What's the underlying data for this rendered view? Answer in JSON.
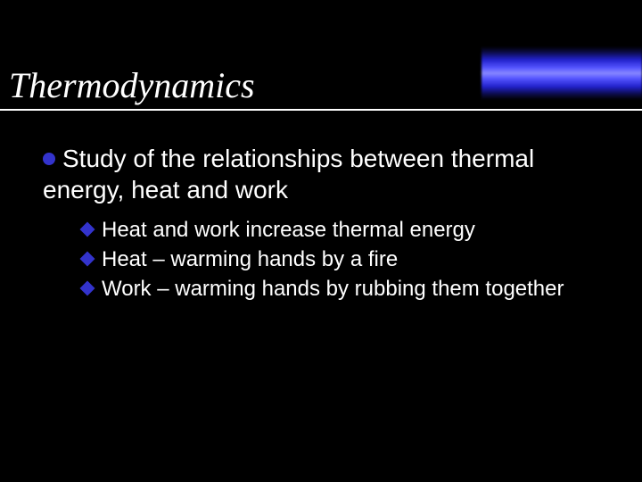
{
  "slide": {
    "title": "Thermodynamics",
    "background_color": "#000000",
    "text_color": "#ffffff",
    "bullet_color": "#3333cc",
    "title_font": "Times New Roman",
    "title_fontsize": 40,
    "title_style": "italic",
    "body_font": "Arial",
    "level1_fontsize": 28,
    "level2_fontsize": 24,
    "gradient_colors": [
      "#000000",
      "#2222cc",
      "#8888ff",
      "#2222cc",
      "#000000"
    ],
    "level1": {
      "text": "Study of the relationships between thermal energy, heat and work"
    },
    "level2": [
      {
        "text": "Heat and work increase thermal energy"
      },
      {
        "text": "Heat – warming hands by a fire"
      },
      {
        "text": "Work – warming hands by rubbing them together"
      }
    ]
  }
}
